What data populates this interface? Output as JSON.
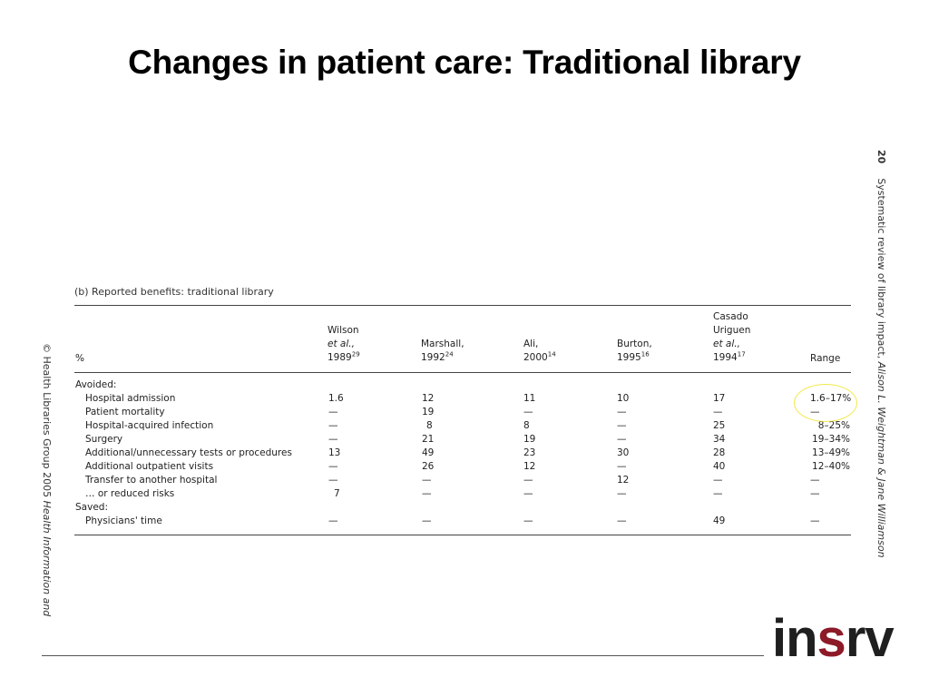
{
  "slide": {
    "title": "Changes in patient care: Traditional library"
  },
  "figure": {
    "caption": "(b) Reported benefits: traditional library",
    "side_right": {
      "page_number": "20",
      "running_head_prefix": "Systematic review of library impact,",
      "authors": "Alison L. Weightman & Jane Williamson"
    },
    "side_left": {
      "copyright": "© Health Libraries Group 2005",
      "journal": "Health Information and"
    },
    "header": {
      "percent_col": "%",
      "studies": [
        {
          "line1": "Wilson",
          "line2": "et al.,",
          "line3": "1989",
          "ref": "29"
        },
        {
          "line1": "Marshall,",
          "line2": "1992",
          "ref": "24"
        },
        {
          "line1": "Ali,",
          "line2": "2000",
          "ref": "14"
        },
        {
          "line1": "Burton,",
          "line2": "1995",
          "ref": "16"
        },
        {
          "line1": "Casado",
          "line2": "Uriguen",
          "line3": "et al.,",
          "line4": "1994",
          "ref": "17"
        }
      ],
      "range_col": "Range"
    },
    "sections": [
      {
        "label": "Avoided:"
      },
      {
        "label": "Saved:"
      }
    ],
    "rows": [
      {
        "label": "Hospital admission",
        "values": [
          "1.6",
          "12",
          "11",
          "10",
          "17",
          "1.6–17%"
        ]
      },
      {
        "label": "Patient mortality",
        "values": [
          "—",
          "19",
          "—",
          "—",
          "—",
          "—"
        ]
      },
      {
        "label": "Hospital-acquired infection",
        "values": [
          "—",
          "8",
          "8",
          "—",
          "25",
          "8–25%"
        ]
      },
      {
        "label": "Surgery",
        "values": [
          "—",
          "21",
          "19",
          "—",
          "34",
          "19–34%"
        ]
      },
      {
        "label": "Additional/unnecessary tests or procedures",
        "values": [
          "13",
          "49",
          "23",
          "30",
          "28",
          "13–49%"
        ]
      },
      {
        "label": "Additional outpatient visits",
        "values": [
          "—",
          "26",
          "12",
          "—",
          "40",
          "12–40%"
        ]
      },
      {
        "label": "Transfer to another hospital",
        "values": [
          "—",
          "—",
          "—",
          "12",
          "—",
          "—"
        ]
      },
      {
        "label": "… or reduced risks",
        "values": [
          "7",
          "—",
          "—",
          "—",
          "—",
          "—"
        ]
      },
      {
        "label": "Physicians' time",
        "values": [
          "—",
          "—",
          "—",
          "—",
          "49",
          "—"
        ]
      }
    ]
  },
  "logo": {
    "part1": "in",
    "part2": "s",
    "part3": "rv"
  },
  "colors": {
    "logo_dark": "#1f1f1f",
    "logo_red": "#8d1a28",
    "highlight": "#f3e84a"
  }
}
